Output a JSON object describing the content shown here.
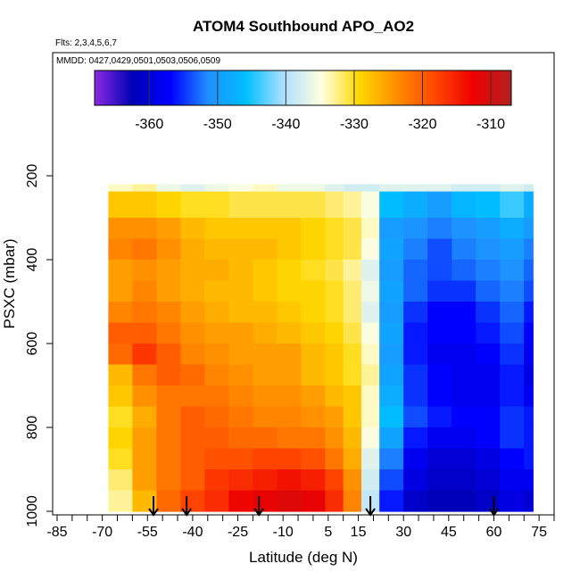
{
  "chart_data": {
    "type": "heatmap",
    "title": "ATOM4 Southbound APO_AO2",
    "flights_note": "Flts: 2,3,4,5,6,7",
    "dates_note": "MMDD: 0427,0429,0501,0503,0506,0509",
    "xlabel": "Latitude (deg N)",
    "ylabel": "PSXC (mbar)",
    "xlim": [
      -85,
      80
    ],
    "ylim": [
      1000,
      0
    ],
    "x_tick_labels": [
      "-85",
      "-70",
      "-55",
      "-40",
      "-25",
      "-10",
      "5",
      "15",
      "30",
      "45",
      "60",
      "75"
    ],
    "x_tick_values": [
      -85,
      -70,
      -55,
      -40,
      -25,
      -10,
      5,
      15,
      30,
      45,
      60,
      75
    ],
    "y_tick_labels": [
      "200",
      "400",
      "600",
      "800",
      "1000"
    ],
    "y_tick_values": [
      200,
      400,
      600,
      800,
      1000
    ],
    "colorbar": {
      "min": -368,
      "max": -307,
      "tick_values": [
        -360,
        -350,
        -340,
        -330,
        -320,
        -310
      ],
      "tick_labels": [
        "-360",
        "-350",
        "-340",
        "-330",
        "-320",
        "-310"
      ],
      "colors": [
        "#8a2be2",
        "#0000b4",
        "#0000ff",
        "#1e90ff",
        "#00bfff",
        "#b0e0ff",
        "#ffffe0",
        "#ffd700",
        "#ff8c00",
        "#ff4500",
        "#ee0000",
        "#b22222"
      ]
    },
    "lat_edges": [
      -68,
      -60,
      -52,
      -44,
      -36,
      -28,
      -20,
      -12,
      -4,
      4,
      10,
      16,
      22,
      30,
      38,
      46,
      54,
      62,
      70,
      73
    ],
    "pressure_levels": [
      200,
      275,
      325,
      375,
      425,
      475,
      525,
      575,
      625,
      675,
      725,
      775,
      825,
      875,
      925,
      975
    ],
    "values": [
      [
        -334,
        -333,
        -336,
        -337,
        -336,
        -335,
        -334,
        -336,
        -336,
        -337,
        -338,
        -338,
        -337,
        -337,
        -337,
        -338,
        -338,
        -337,
        -338
      ],
      [
        -328,
        -328,
        -329,
        -330,
        -330,
        -331,
        -331,
        -331,
        -331,
        -332,
        -333,
        -335,
        -346,
        -348,
        -350,
        -347,
        -346,
        -344,
        -348
      ],
      [
        -324,
        -324,
        -325,
        -327,
        -328,
        -328,
        -328,
        -328,
        -329,
        -330,
        -331,
        -334,
        -350,
        -351,
        -352,
        -351,
        -350,
        -348,
        -350
      ],
      [
        -323,
        -322,
        -324,
        -326,
        -327,
        -327,
        -327,
        -328,
        -329,
        -330,
        -331,
        -335,
        -349,
        -352,
        -354,
        -352,
        -351,
        -350,
        -352
      ],
      [
        -325,
        -324,
        -325,
        -326,
        -326,
        -327,
        -328,
        -329,
        -330,
        -331,
        -333,
        -337,
        -350,
        -353,
        -354,
        -353,
        -352,
        -351,
        -353
      ],
      [
        -325,
        -323,
        -325,
        -326,
        -327,
        -327,
        -328,
        -329,
        -329,
        -330,
        -332,
        -336,
        -349,
        -353,
        -355,
        -355,
        -353,
        -352,
        -354
      ],
      [
        -323,
        -322,
        -323,
        -325,
        -326,
        -327,
        -327,
        -328,
        -329,
        -330,
        -332,
        -337,
        -350,
        -355,
        -357,
        -357,
        -355,
        -353,
        -356
      ],
      [
        -320,
        -320,
        -322,
        -324,
        -325,
        -325,
        -326,
        -327,
        -328,
        -329,
        -331,
        -335,
        -349,
        -356,
        -357,
        -357,
        -356,
        -354,
        -357
      ],
      [
        -321,
        -317,
        -320,
        -323,
        -324,
        -325,
        -325,
        -325,
        -327,
        -328,
        -330,
        -334,
        -350,
        -356,
        -358,
        -358,
        -357,
        -355,
        -358
      ],
      [
        -327,
        -322,
        -320,
        -321,
        -323,
        -324,
        -325,
        -325,
        -327,
        -328,
        -330,
        -333,
        -349,
        -355,
        -357,
        -358,
        -358,
        -356,
        -359
      ],
      [
        -328,
        -324,
        -322,
        -322,
        -322,
        -323,
        -324,
        -324,
        -325,
        -327,
        -328,
        -334,
        -348,
        -355,
        -357,
        -358,
        -358,
        -356,
        -358
      ],
      [
        -330,
        -326,
        -322,
        -320,
        -321,
        -322,
        -323,
        -323,
        -324,
        -325,
        -328,
        -334,
        -346,
        -354,
        -356,
        -357,
        -357,
        -355,
        -356
      ],
      [
        -329,
        -325,
        -322,
        -320,
        -320,
        -321,
        -321,
        -322,
        -322,
        -324,
        -327,
        -335,
        -349,
        -356,
        -358,
        -358,
        -357,
        -355,
        -356
      ],
      [
        -330,
        -325,
        -322,
        -320,
        -319,
        -319,
        -318,
        -318,
        -319,
        -322,
        -326,
        -337,
        -352,
        -358,
        -360,
        -360,
        -359,
        -357,
        -356
      ],
      [
        -332,
        -325,
        -322,
        -320,
        -317,
        -316,
        -315,
        -314,
        -315,
        -318,
        -324,
        -338,
        -354,
        -359,
        -361,
        -361,
        -360,
        -358,
        -358
      ],
      [
        -333,
        -327,
        -321,
        -318,
        -316,
        -313,
        -312,
        -311,
        -312,
        -316,
        -323,
        -339,
        -356,
        -361,
        -362,
        -362,
        -361,
        -359,
        -360
      ]
    ],
    "flight_marker_latitudes": [
      -53,
      -42,
      -18,
      19,
      60
    ]
  }
}
